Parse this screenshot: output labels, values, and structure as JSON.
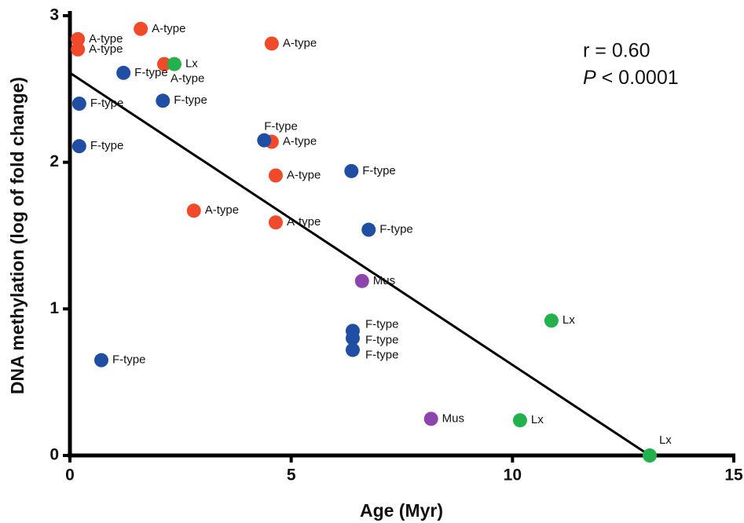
{
  "chart_data": {
    "type": "scatter",
    "xlabel": "Age (Myr)",
    "ylabel": "DNA methylation (log of fold change)",
    "xlim": [
      0,
      15
    ],
    "ylim": [
      0,
      3
    ],
    "xticks": [
      0,
      5,
      10,
      15
    ],
    "yticks": [
      0,
      1,
      2,
      3
    ],
    "annotations": {
      "r": "r = 0.60",
      "p_symbol": "P",
      "p_rest": " < 0.0001"
    },
    "fit": {
      "color": "#000000",
      "x": [
        0,
        13.1
      ],
      "y": [
        2.61,
        0
      ]
    },
    "series": [
      {
        "name": "A-type",
        "color": "#f04a2a",
        "x": [
          0.18,
          0.18,
          1.6,
          4.56,
          2.13,
          4.56,
          4.65,
          2.8,
          4.65
        ],
        "y": [
          2.84,
          2.77,
          2.91,
          2.81,
          2.67,
          2.14,
          1.91,
          1.67,
          1.59
        ]
      },
      {
        "name": "F-type",
        "color": "#1f4ea3",
        "x": [
          1.21,
          0.21,
          2.1,
          0.21,
          4.39,
          6.36,
          6.75,
          6.39,
          6.39,
          6.39,
          0.71
        ],
        "y": [
          2.61,
          2.4,
          2.42,
          2.11,
          2.15,
          1.94,
          1.54,
          0.85,
          0.8,
          0.72,
          0.65
        ]
      },
      {
        "name": "Lx",
        "color": "#22b14c",
        "x": [
          2.36,
          10.88,
          10.17,
          13.1
        ],
        "y": [
          2.67,
          0.92,
          0.24,
          0.0
        ]
      },
      {
        "name": "Mus",
        "color": "#8e44ad",
        "x": [
          6.6,
          8.16
        ],
        "y": [
          1.19,
          0.25
        ]
      }
    ]
  }
}
